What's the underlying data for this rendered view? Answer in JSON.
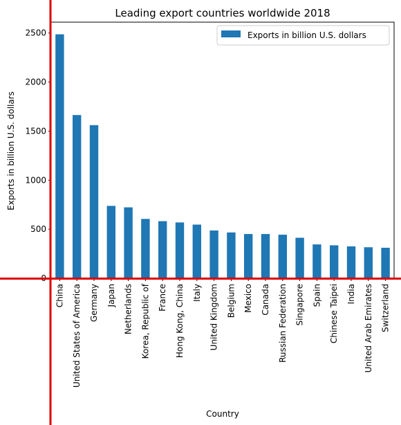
{
  "chart_data": {
    "type": "bar",
    "title": "Leading export countries worldwide 2018",
    "xlabel": "Country",
    "ylabel": "Exports in billion U.S. dollars",
    "ylim": [
      0,
      2611
    ],
    "yticks": [
      0,
      500,
      1000,
      1500,
      2000,
      2500
    ],
    "grid": false,
    "legend_position": "top-right",
    "series": [
      {
        "name": "Exports in billion U.S. dollars",
        "color": "#1f77b4",
        "values": [
          2487,
          1664,
          1561,
          738,
          723,
          605,
          582,
          569,
          547,
          487,
          467,
          451,
          451,
          444,
          413,
          345,
          336,
          325,
          316,
          311
        ]
      }
    ],
    "categories": [
      "China",
      "United States of America",
      "Germany",
      "Japan",
      "Netherlands",
      "Korea, Republic of",
      "France",
      "Hong Kong, China",
      "Italy",
      "United Kingdom",
      "Belgium",
      "Mexico",
      "Canada",
      "Russian Federation",
      "Singapore",
      "Spain",
      "Chinese Taipei",
      "India",
      "United Arab Emirates",
      "Switzerland"
    ],
    "overlay_lines_color": "#dd0000"
  }
}
